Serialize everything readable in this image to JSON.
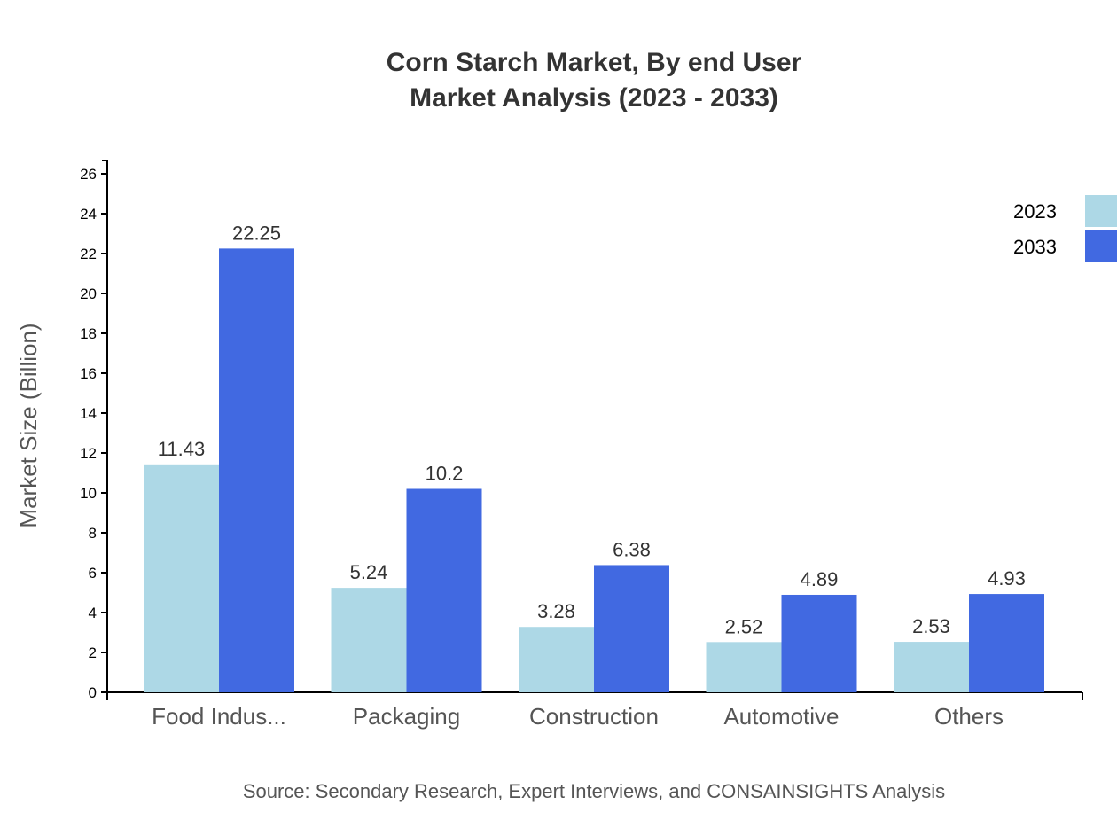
{
  "chart_data": {
    "type": "bar",
    "title": "Corn Starch Market, By end User",
    "subtitle": "Market Analysis (2023 - 2033)",
    "xlabel": "",
    "ylabel": "Market Size (Billion)",
    "ylim": [
      0,
      26
    ],
    "yticks": [
      "0",
      "2",
      "4",
      "6",
      "8",
      "10",
      "12",
      "14",
      "16",
      "18",
      "20",
      "22",
      "24",
      "26"
    ],
    "grid": false,
    "legend_position": "top-right",
    "categories": [
      "Food Indus...",
      "Packaging",
      "Construction",
      "Automotive",
      "Others"
    ],
    "series": [
      {
        "name": "2023",
        "color": "#add8e6",
        "values": [
          11.43,
          5.24,
          3.28,
          2.52,
          2.53
        ],
        "labels": [
          "11.43",
          "5.24",
          "3.28",
          "2.52",
          "2.53"
        ]
      },
      {
        "name": "2033",
        "color": "#4169e1",
        "values": [
          22.25,
          10.2,
          6.38,
          4.89,
          4.93
        ],
        "labels": [
          "22.25",
          "10.2",
          "6.38",
          "4.89",
          "4.93"
        ]
      }
    ],
    "source": "Source: Secondary Research, Expert Interviews, and CONSAINSIGHTS Analysis"
  }
}
